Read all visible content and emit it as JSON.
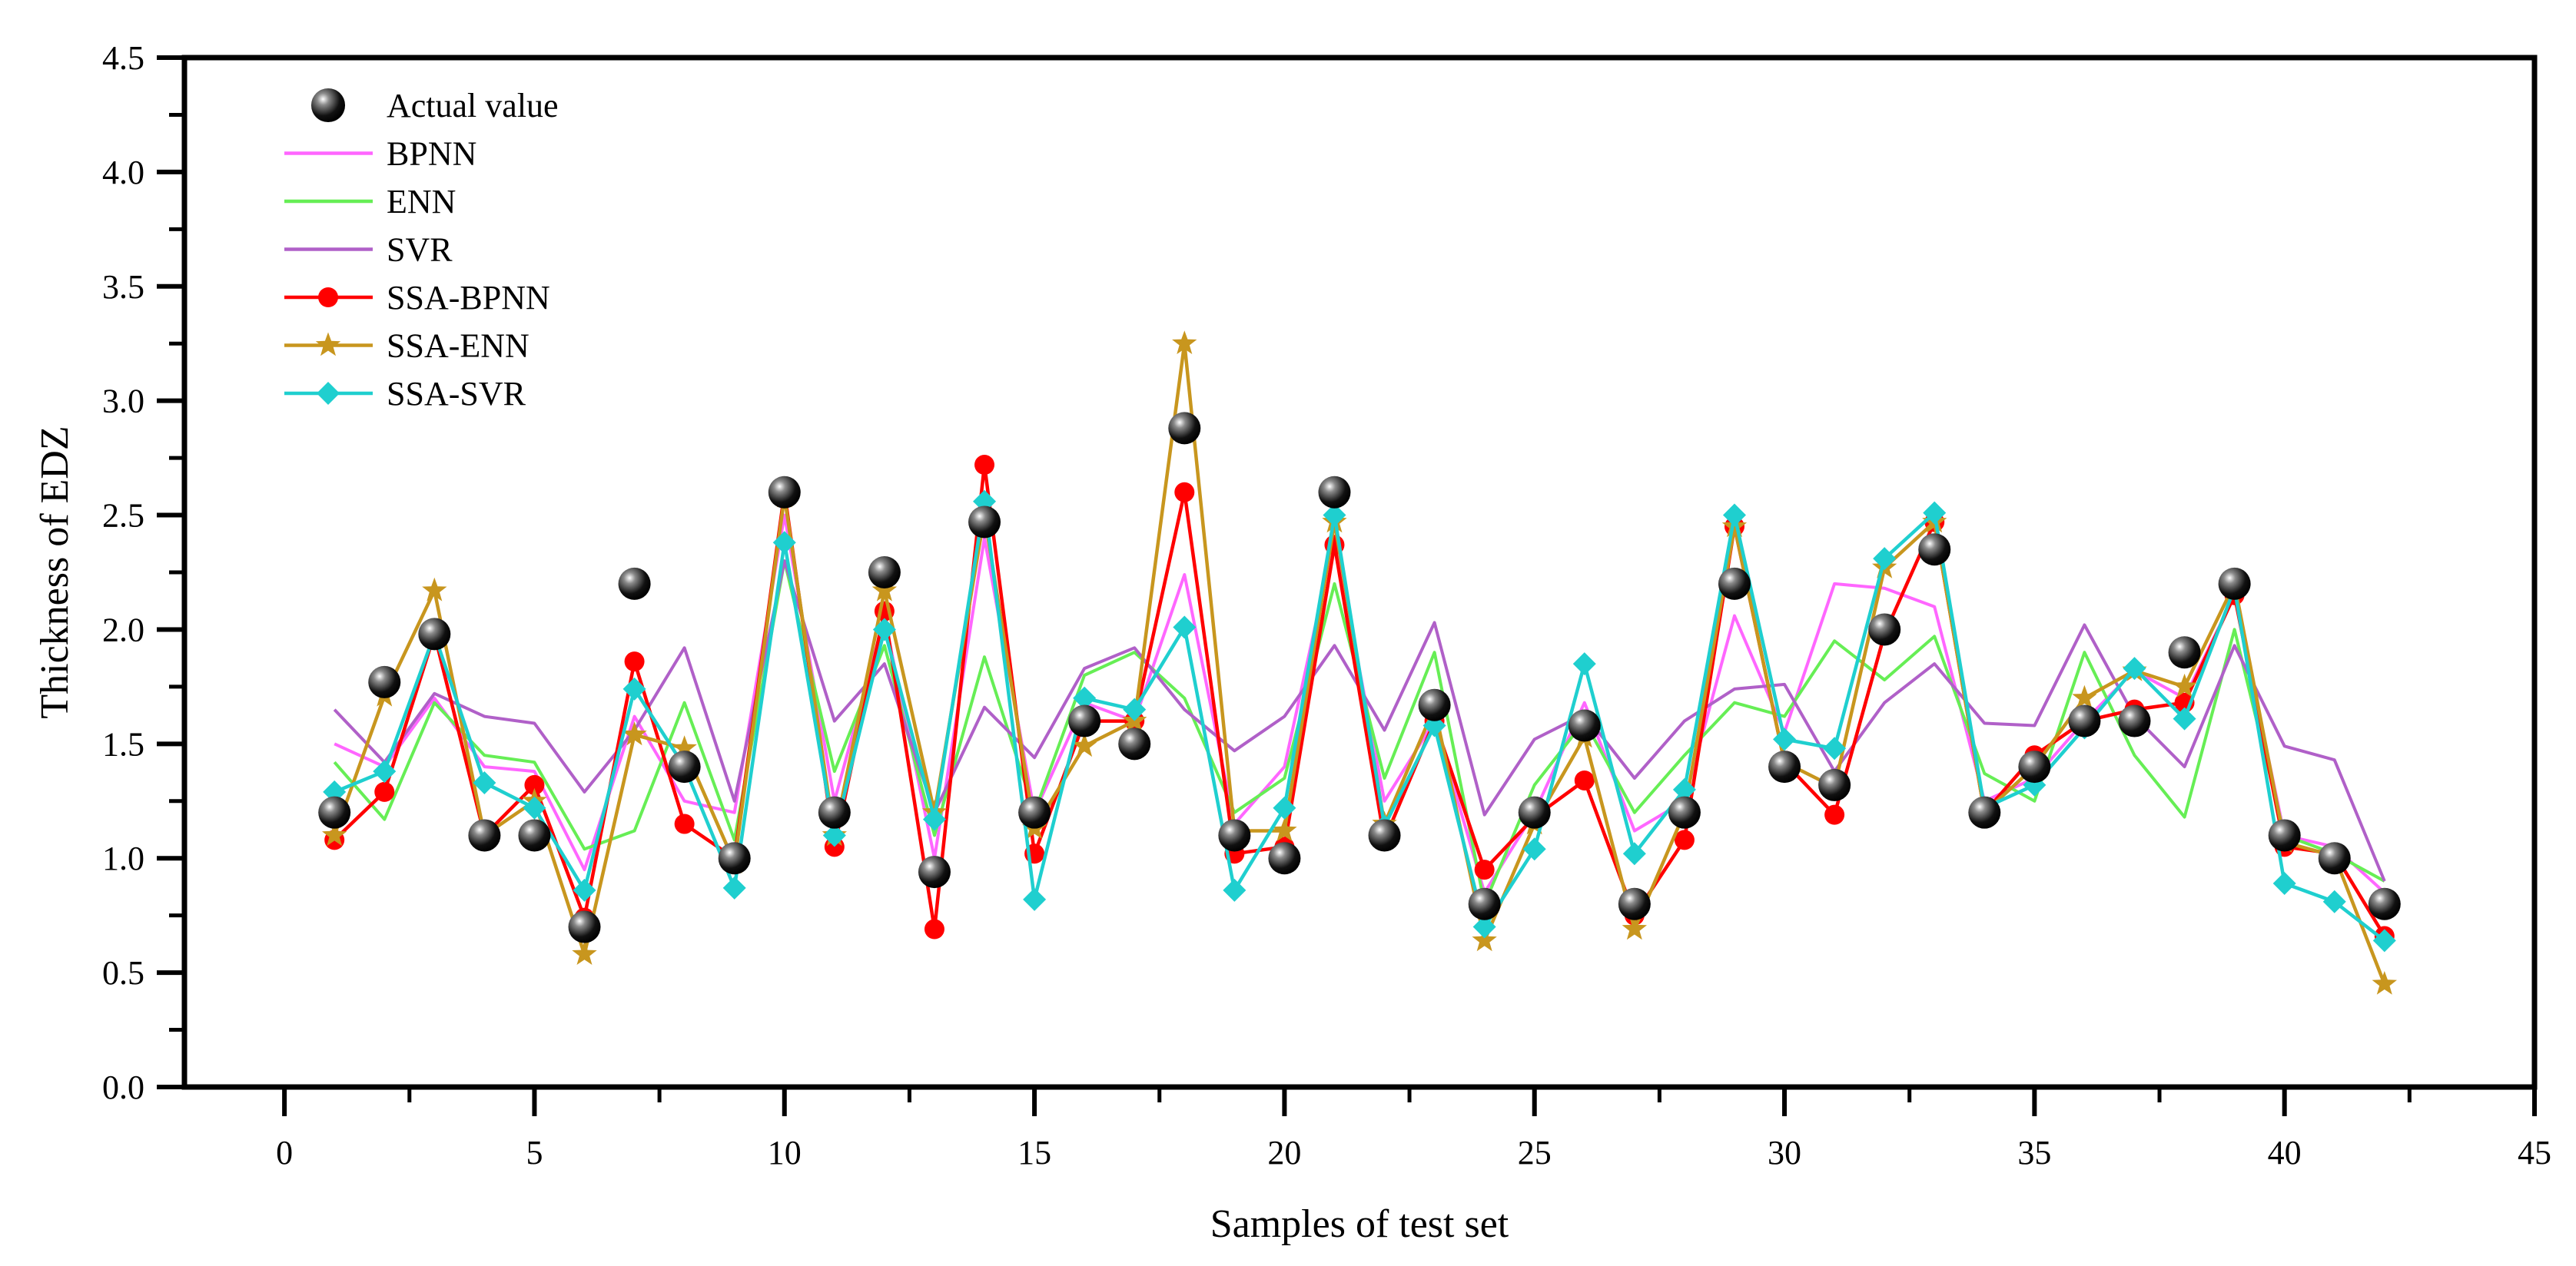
{
  "chart_data": {
    "type": "line",
    "title": "",
    "xlabel": "Samples of test set",
    "ylabel": "Thickness of EDZ",
    "xlim": [
      -2,
      45
    ],
    "ylim": [
      0,
      4.5
    ],
    "xticks": [
      0,
      5,
      10,
      15,
      20,
      25,
      30,
      35,
      40,
      45
    ],
    "xtick_labels": [
      "0",
      "5",
      "10",
      "15",
      "20",
      "25",
      "30",
      "35",
      "40",
      "45"
    ],
    "yticks": [
      0,
      0.5,
      1,
      1.5,
      2,
      2.5,
      3,
      3.5,
      4,
      4.5
    ],
    "ytick_labels": [
      "0.0",
      "0.5",
      "1.0",
      "1.5",
      "2.0",
      "2.5",
      "3.0",
      "3.5",
      "4.0",
      "4.5"
    ],
    "grid": false,
    "legend_position": "top-left",
    "x": [
      1,
      2,
      3,
      4,
      5,
      6,
      7,
      8,
      9,
      10,
      11,
      12,
      13,
      14,
      15,
      16,
      17,
      18,
      19,
      20,
      21,
      22,
      23,
      24,
      25,
      26,
      27,
      28,
      29,
      30,
      31,
      32,
      33,
      34,
      35,
      36,
      37,
      38,
      39,
      40,
      41,
      42
    ],
    "series": [
      {
        "name": "Actual value",
        "style": "sphere",
        "color": "#111111",
        "values": [
          1.2,
          1.77,
          1.98,
          1.1,
          1.1,
          0.7,
          2.2,
          1.4,
          1.0,
          2.6,
          1.2,
          2.25,
          0.94,
          2.47,
          1.2,
          1.6,
          1.5,
          2.88,
          1.1,
          1.0,
          2.6,
          1.1,
          1.67,
          0.8,
          1.2,
          1.58,
          0.8,
          1.2,
          2.2,
          1.4,
          1.32,
          2.0,
          2.35,
          1.2,
          1.4,
          1.6,
          1.6,
          1.9,
          2.2,
          1.1,
          1.0,
          0.8
        ]
      },
      {
        "name": "BPNN",
        "style": "line",
        "color": "#ff66ff",
        "values": [
          1.5,
          1.4,
          1.7,
          1.4,
          1.38,
          0.95,
          1.62,
          1.25,
          1.2,
          2.5,
          1.25,
          2.05,
          1.0,
          2.4,
          1.2,
          1.68,
          1.6,
          2.24,
          1.15,
          1.4,
          2.4,
          1.25,
          1.6,
          0.85,
          1.2,
          1.68,
          1.12,
          1.25,
          2.06,
          1.55,
          2.2,
          2.18,
          2.1,
          1.25,
          1.35,
          1.6,
          1.82,
          1.7,
          2.15,
          1.1,
          1.05,
          0.85
        ]
      },
      {
        "name": "ENN",
        "style": "line",
        "color": "#66ee55",
        "values": [
          1.42,
          1.17,
          1.68,
          1.45,
          1.42,
          1.04,
          1.12,
          1.68,
          1.08,
          2.3,
          1.38,
          1.93,
          1.1,
          1.88,
          1.2,
          1.8,
          1.9,
          1.7,
          1.2,
          1.35,
          2.2,
          1.35,
          1.9,
          0.8,
          1.32,
          1.6,
          1.2,
          1.45,
          1.68,
          1.62,
          1.95,
          1.78,
          1.97,
          1.37,
          1.25,
          1.9,
          1.45,
          1.18,
          2.0,
          1.1,
          1.02,
          0.9
        ]
      },
      {
        "name": "SVR",
        "style": "line",
        "color": "#b060c8",
        "values": [
          1.65,
          1.42,
          1.72,
          1.62,
          1.59,
          1.29,
          1.56,
          1.92,
          1.25,
          2.3,
          1.6,
          1.85,
          1.2,
          1.66,
          1.44,
          1.83,
          1.92,
          1.65,
          1.47,
          1.62,
          1.93,
          1.56,
          2.03,
          1.19,
          1.52,
          1.63,
          1.35,
          1.6,
          1.74,
          1.76,
          1.38,
          1.68,
          1.85,
          1.59,
          1.58,
          2.02,
          1.62,
          1.4,
          1.93,
          1.49,
          1.43,
          0.9
        ]
      },
      {
        "name": "SSA-BPNN",
        "style": "circle",
        "color": "#ff0000",
        "values": [
          1.08,
          1.29,
          1.98,
          1.1,
          1.32,
          0.74,
          1.86,
          1.15,
          1.0,
          2.6,
          1.05,
          2.08,
          0.69,
          2.72,
          1.02,
          1.6,
          1.6,
          2.6,
          1.02,
          1.05,
          2.37,
          1.08,
          1.6,
          0.95,
          1.18,
          1.34,
          0.75,
          1.08,
          2.45,
          1.42,
          1.19,
          1.98,
          2.47,
          1.2,
          1.45,
          1.6,
          1.65,
          1.68,
          2.15,
          1.05,
          1.02,
          0.66
        ]
      },
      {
        "name": "SSA-ENN",
        "style": "star",
        "color": "#c8961e",
        "values": [
          1.1,
          1.71,
          2.17,
          1.1,
          1.25,
          0.58,
          1.54,
          1.48,
          0.98,
          2.58,
          1.1,
          2.17,
          1.2,
          2.5,
          1.13,
          1.49,
          1.6,
          3.25,
          1.12,
          1.12,
          2.47,
          1.15,
          1.66,
          0.64,
          1.15,
          1.53,
          0.69,
          1.2,
          2.45,
          1.42,
          1.31,
          2.27,
          2.47,
          1.2,
          1.4,
          1.7,
          1.82,
          1.75,
          2.2,
          1.07,
          1.01,
          0.45
        ]
      },
      {
        "name": "SSA-SVR",
        "style": "diamond",
        "color": "#1fcfcf",
        "values": [
          1.29,
          1.38,
          1.98,
          1.33,
          1.22,
          0.86,
          1.74,
          1.4,
          0.87,
          2.38,
          1.1,
          2.0,
          1.17,
          2.56,
          0.82,
          1.7,
          1.65,
          2.01,
          0.86,
          1.22,
          2.5,
          1.14,
          1.58,
          0.7,
          1.04,
          1.85,
          1.02,
          1.3,
          2.5,
          1.52,
          1.48,
          2.31,
          2.51,
          1.22,
          1.32,
          1.57,
          1.83,
          1.61,
          2.18,
          0.89,
          0.81,
          0.64
        ]
      }
    ]
  }
}
